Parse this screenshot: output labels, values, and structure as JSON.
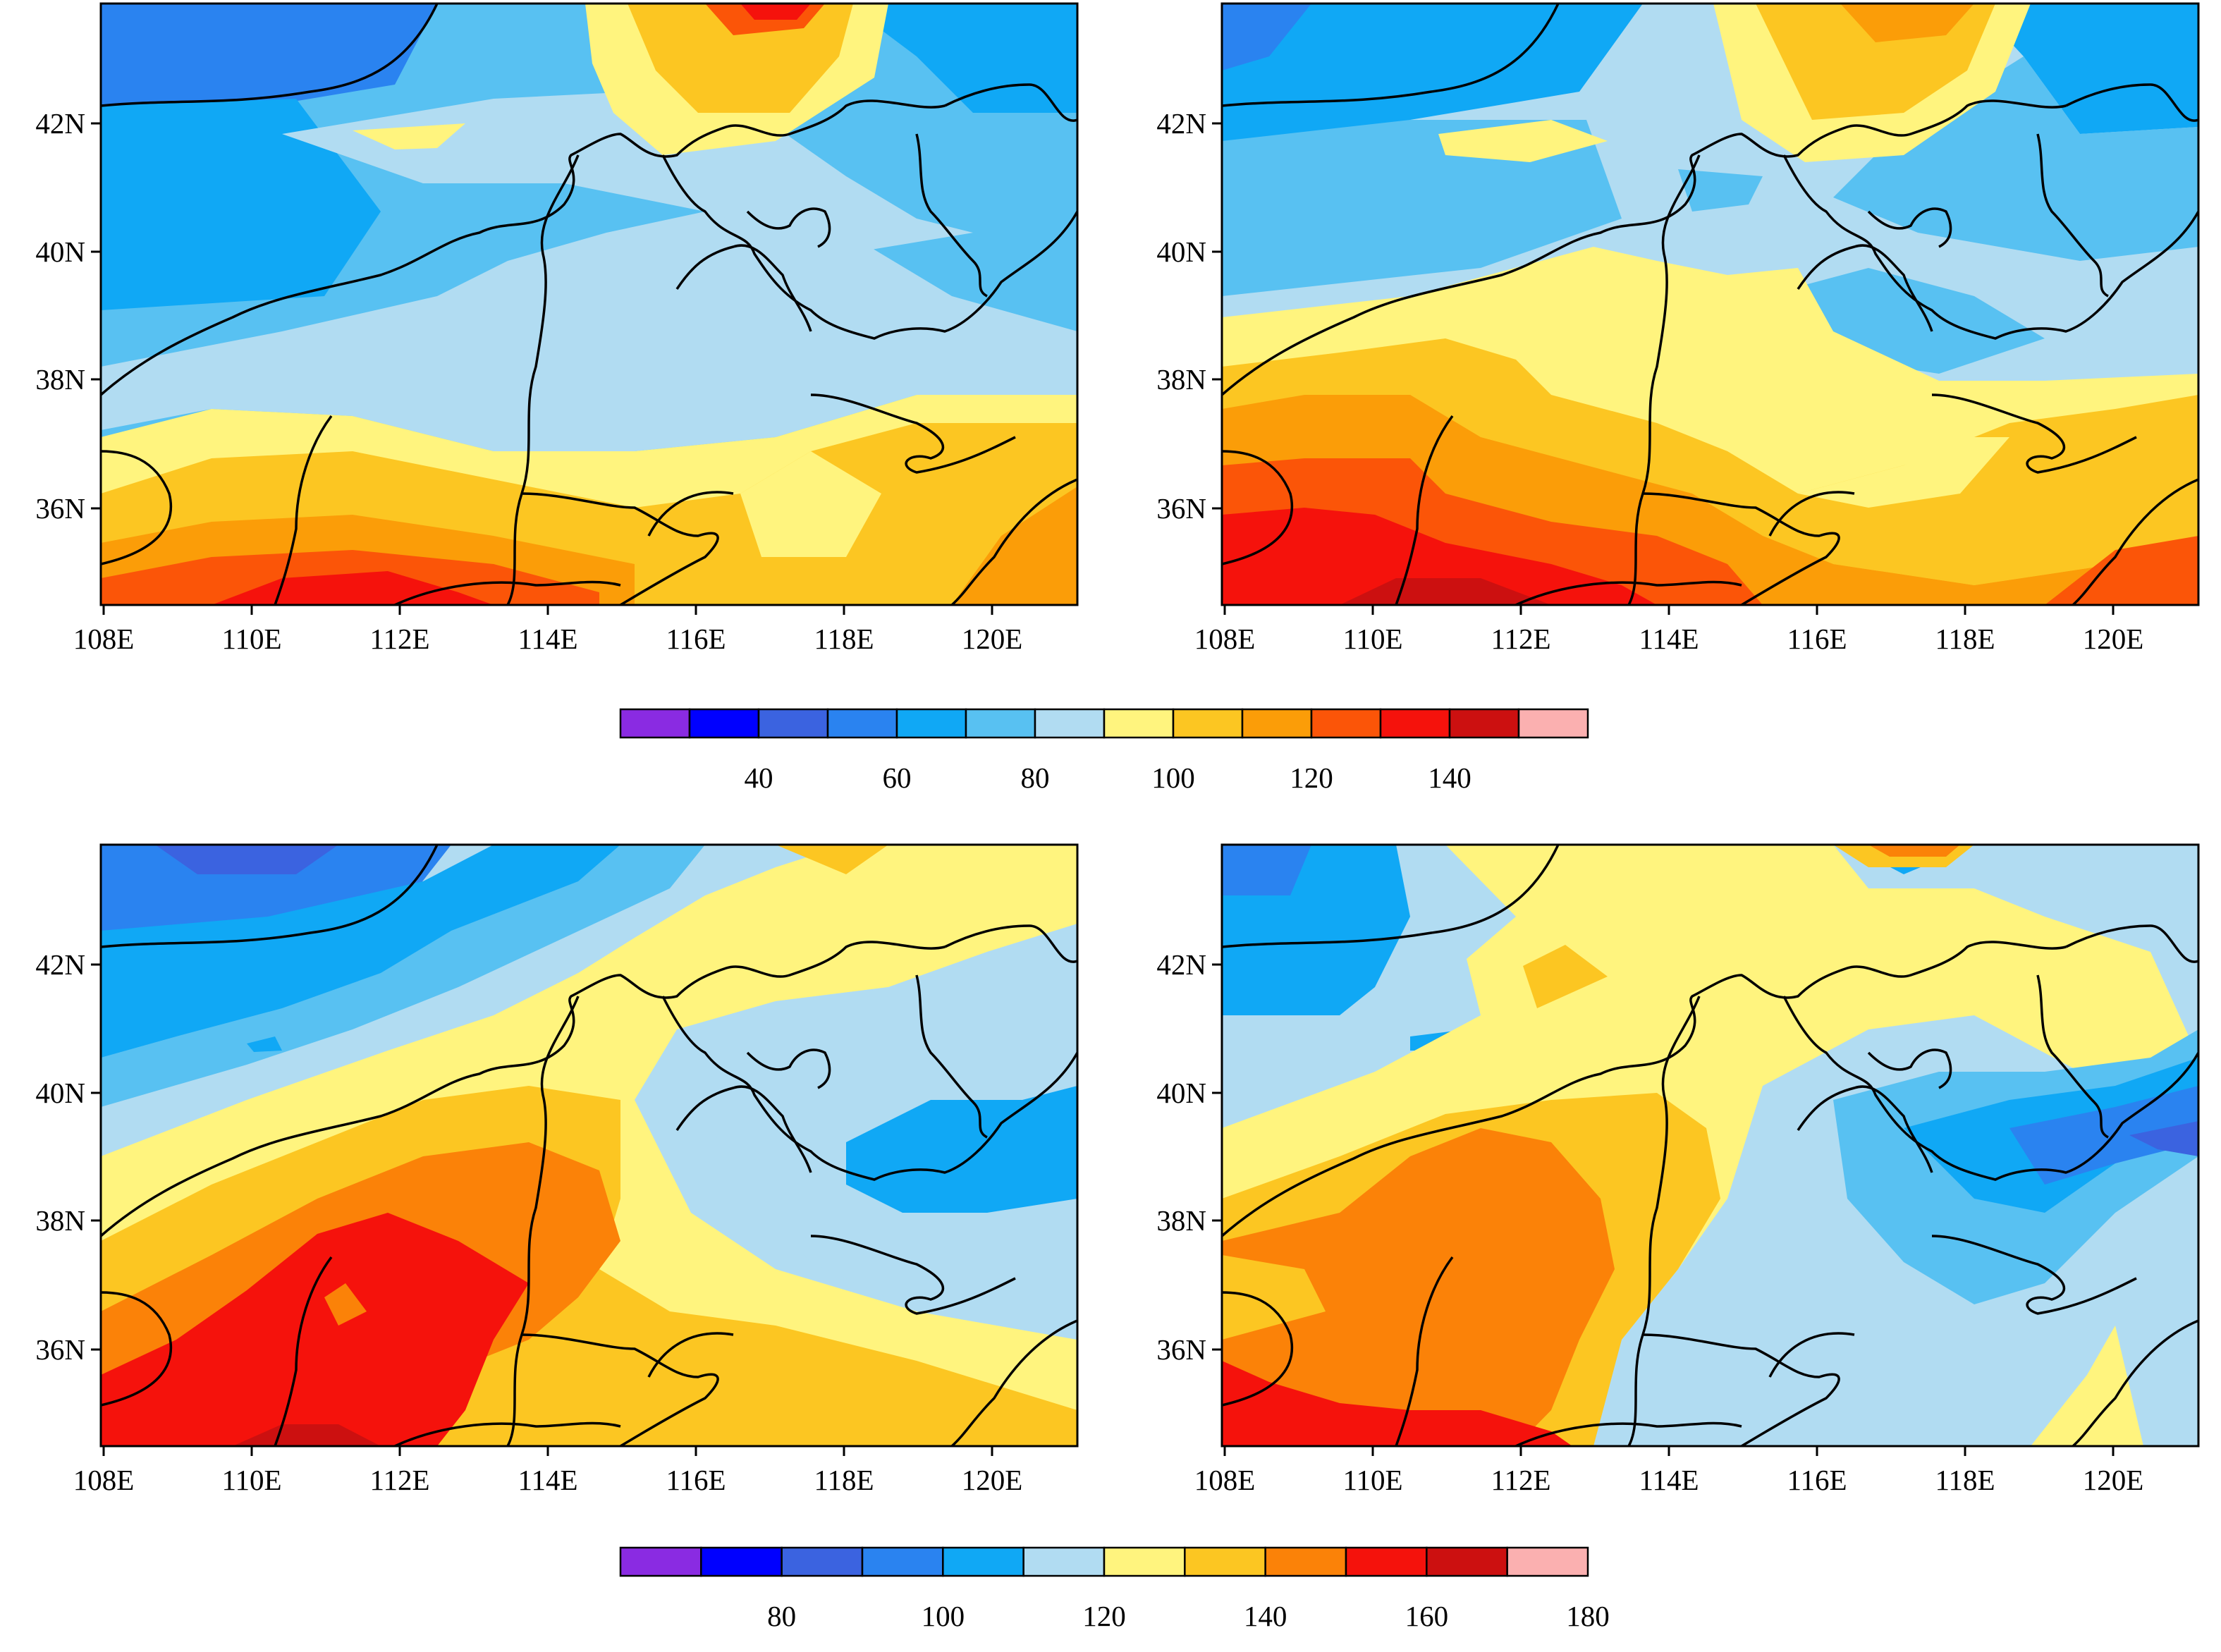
{
  "panels": [
    {
      "name": "panel-top-left",
      "lon_ticks": [
        "108E",
        "110E",
        "112E",
        "114E",
        "116E",
        "118E",
        "120E"
      ],
      "lat_ticks": [
        "42N",
        "40N",
        "38N",
        "36N"
      ]
    },
    {
      "name": "panel-top-right",
      "lon_ticks": [
        "108E",
        "110E",
        "112E",
        "114E",
        "116E",
        "118E",
        "120E"
      ],
      "lat_ticks": [
        "42N",
        "40N",
        "38N",
        "36N"
      ]
    },
    {
      "name": "panel-bottom-left",
      "lon_ticks": [
        "108E",
        "110E",
        "112E",
        "114E",
        "116E",
        "118E",
        "120E"
      ],
      "lat_ticks": [
        "42N",
        "40N",
        "38N",
        "36N"
      ]
    },
    {
      "name": "panel-bottom-right",
      "lon_ticks": [
        "108E",
        "110E",
        "112E",
        "114E",
        "116E",
        "118E",
        "120E"
      ],
      "lat_ticks": [
        "42N",
        "40N",
        "38N",
        "36N"
      ]
    }
  ],
  "colorbars": [
    {
      "name": "colorbar-top",
      "labels": [
        "40",
        "60",
        "80",
        "100",
        "120",
        "140"
      ],
      "label_after_box": [
        1,
        3,
        5,
        7,
        9,
        11
      ],
      "colors": [
        "#8a2be2",
        "#0000ff",
        "#3b63e0",
        "#2a83f0",
        "#10a8f5",
        "#58c1f2",
        "#b1dcf2",
        "#fff47e",
        "#fcc622",
        "#fb9d08",
        "#fb5508",
        "#f5120c",
        "#cc1010",
        "#fbb0b0"
      ]
    },
    {
      "name": "colorbar-bottom",
      "labels": [
        "80",
        "100",
        "120",
        "140",
        "160",
        "180"
      ],
      "label_after_box": [
        1,
        3,
        5,
        7,
        9,
        11
      ],
      "colors": [
        "#8a2be2",
        "#0000ff",
        "#3b63e0",
        "#2a83f0",
        "#10a8f5",
        "#b1dcf2",
        "#fff47e",
        "#fcc622",
        "#fb8208",
        "#f5120c",
        "#cc1010",
        "#fbb0b0"
      ]
    }
  ],
  "palette": {
    "blue_dark": "#2a83f0",
    "blue_sky": "#10a8f5",
    "blue_mid": "#58c1f2",
    "blue_light": "#b1dcf2",
    "yellow_light": "#fff47e",
    "yellow": "#fcc622",
    "orange": "#fb9d08",
    "orange_red": "#fb5508",
    "red": "#f5120c",
    "dark_red": "#cc1010",
    "border": "#000000"
  }
}
